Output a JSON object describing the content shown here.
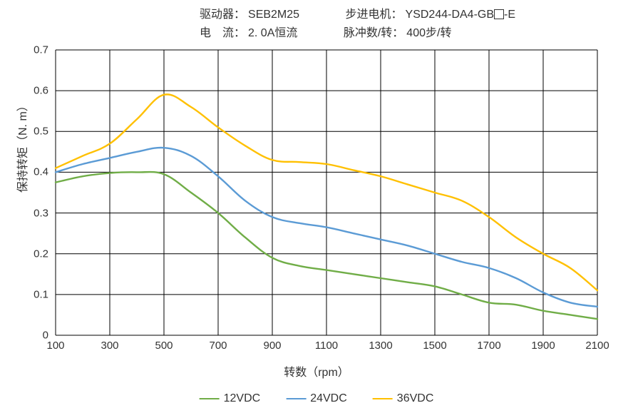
{
  "header": {
    "row1": {
      "label1": "驱动器：",
      "value1": "SEB2M25",
      "label2": "步进电机：",
      "value2_prefix": "YSD244-DA4-GB",
      "value2_suffix": "-E"
    },
    "row2": {
      "label1": "电　流：",
      "value1": "2. 0A恒流",
      "label2": "脉冲数/转：",
      "value2": "400步/转"
    }
  },
  "chart": {
    "type": "line",
    "x_axis": {
      "title": "转数（rpm）",
      "min": 100,
      "max": 2100,
      "ticks": [
        100,
        300,
        500,
        700,
        900,
        1100,
        1300,
        1500,
        1700,
        1900,
        2100
      ],
      "title_fontsize": 16,
      "tick_fontsize": 15
    },
    "y_axis": {
      "title": "保持转矩（N. m）",
      "min": 0,
      "max": 0.7,
      "ticks": [
        0,
        0.1,
        0.2,
        0.3,
        0.4,
        0.5,
        0.6,
        0.7
      ],
      "title_fontsize": 16,
      "tick_fontsize": 15
    },
    "grid_color": "#000000",
    "grid_width": 1,
    "background_color": "#ffffff",
    "line_width": 2.4,
    "series": [
      {
        "name": "12VDC",
        "color": "#70ad47",
        "points": [
          [
            100,
            0.375
          ],
          [
            200,
            0.39
          ],
          [
            300,
            0.398
          ],
          [
            400,
            0.4
          ],
          [
            500,
            0.395
          ],
          [
            600,
            0.35
          ],
          [
            700,
            0.3
          ],
          [
            800,
            0.24
          ],
          [
            900,
            0.19
          ],
          [
            1000,
            0.17
          ],
          [
            1100,
            0.16
          ],
          [
            1200,
            0.15
          ],
          [
            1300,
            0.14
          ],
          [
            1400,
            0.13
          ],
          [
            1500,
            0.12
          ],
          [
            1600,
            0.1
          ],
          [
            1700,
            0.08
          ],
          [
            1800,
            0.075
          ],
          [
            1900,
            0.06
          ],
          [
            2000,
            0.05
          ],
          [
            2100,
            0.04
          ]
        ]
      },
      {
        "name": "24VDC",
        "color": "#5b9bd5",
        "points": [
          [
            100,
            0.4
          ],
          [
            200,
            0.42
          ],
          [
            300,
            0.435
          ],
          [
            400,
            0.45
          ],
          [
            500,
            0.46
          ],
          [
            600,
            0.44
          ],
          [
            700,
            0.39
          ],
          [
            800,
            0.33
          ],
          [
            900,
            0.29
          ],
          [
            1000,
            0.275
          ],
          [
            1100,
            0.265
          ],
          [
            1200,
            0.25
          ],
          [
            1300,
            0.235
          ],
          [
            1400,
            0.22
          ],
          [
            1500,
            0.2
          ],
          [
            1600,
            0.18
          ],
          [
            1700,
            0.165
          ],
          [
            1800,
            0.14
          ],
          [
            1900,
            0.105
          ],
          [
            2000,
            0.08
          ],
          [
            2100,
            0.07
          ]
        ]
      },
      {
        "name": "36VDC",
        "color": "#ffc000",
        "points": [
          [
            100,
            0.41
          ],
          [
            200,
            0.44
          ],
          [
            300,
            0.47
          ],
          [
            400,
            0.53
          ],
          [
            500,
            0.59
          ],
          [
            600,
            0.56
          ],
          [
            700,
            0.51
          ],
          [
            800,
            0.465
          ],
          [
            900,
            0.43
          ],
          [
            1000,
            0.425
          ],
          [
            1100,
            0.42
          ],
          [
            1200,
            0.405
          ],
          [
            1300,
            0.39
          ],
          [
            1400,
            0.37
          ],
          [
            1500,
            0.35
          ],
          [
            1600,
            0.33
          ],
          [
            1700,
            0.29
          ],
          [
            1800,
            0.24
          ],
          [
            1900,
            0.2
          ],
          [
            2000,
            0.165
          ],
          [
            2100,
            0.11
          ]
        ]
      }
    ]
  },
  "legend": {
    "position": "bottom",
    "items": [
      "12VDC",
      "24VDC",
      "36VDC"
    ]
  }
}
